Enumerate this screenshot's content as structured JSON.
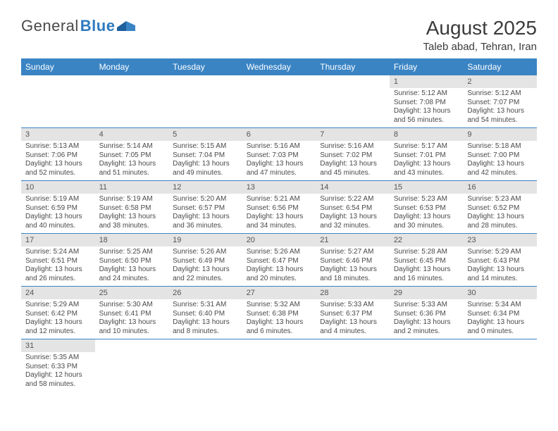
{
  "brand": {
    "part1": "General",
    "part2": "Blue"
  },
  "header": {
    "month_title": "August 2025",
    "location": "Taleb abad, Tehran, Iran"
  },
  "colors": {
    "header_bg": "#3a84c4",
    "row_sep": "#3a84c4",
    "daynum_bg": "#e4e4e4"
  },
  "day_labels": [
    "Sunday",
    "Monday",
    "Tuesday",
    "Wednesday",
    "Thursday",
    "Friday",
    "Saturday"
  ],
  "weeks": [
    [
      null,
      null,
      null,
      null,
      null,
      {
        "n": "1",
        "sunrise": "Sunrise: 5:12 AM",
        "sunset": "Sunset: 7:08 PM",
        "daylight": "Daylight: 13 hours and 56 minutes."
      },
      {
        "n": "2",
        "sunrise": "Sunrise: 5:12 AM",
        "sunset": "Sunset: 7:07 PM",
        "daylight": "Daylight: 13 hours and 54 minutes."
      }
    ],
    [
      {
        "n": "3",
        "sunrise": "Sunrise: 5:13 AM",
        "sunset": "Sunset: 7:06 PM",
        "daylight": "Daylight: 13 hours and 52 minutes."
      },
      {
        "n": "4",
        "sunrise": "Sunrise: 5:14 AM",
        "sunset": "Sunset: 7:05 PM",
        "daylight": "Daylight: 13 hours and 51 minutes."
      },
      {
        "n": "5",
        "sunrise": "Sunrise: 5:15 AM",
        "sunset": "Sunset: 7:04 PM",
        "daylight": "Daylight: 13 hours and 49 minutes."
      },
      {
        "n": "6",
        "sunrise": "Sunrise: 5:16 AM",
        "sunset": "Sunset: 7:03 PM",
        "daylight": "Daylight: 13 hours and 47 minutes."
      },
      {
        "n": "7",
        "sunrise": "Sunrise: 5:16 AM",
        "sunset": "Sunset: 7:02 PM",
        "daylight": "Daylight: 13 hours and 45 minutes."
      },
      {
        "n": "8",
        "sunrise": "Sunrise: 5:17 AM",
        "sunset": "Sunset: 7:01 PM",
        "daylight": "Daylight: 13 hours and 43 minutes."
      },
      {
        "n": "9",
        "sunrise": "Sunrise: 5:18 AM",
        "sunset": "Sunset: 7:00 PM",
        "daylight": "Daylight: 13 hours and 42 minutes."
      }
    ],
    [
      {
        "n": "10",
        "sunrise": "Sunrise: 5:19 AM",
        "sunset": "Sunset: 6:59 PM",
        "daylight": "Daylight: 13 hours and 40 minutes."
      },
      {
        "n": "11",
        "sunrise": "Sunrise: 5:19 AM",
        "sunset": "Sunset: 6:58 PM",
        "daylight": "Daylight: 13 hours and 38 minutes."
      },
      {
        "n": "12",
        "sunrise": "Sunrise: 5:20 AM",
        "sunset": "Sunset: 6:57 PM",
        "daylight": "Daylight: 13 hours and 36 minutes."
      },
      {
        "n": "13",
        "sunrise": "Sunrise: 5:21 AM",
        "sunset": "Sunset: 6:56 PM",
        "daylight": "Daylight: 13 hours and 34 minutes."
      },
      {
        "n": "14",
        "sunrise": "Sunrise: 5:22 AM",
        "sunset": "Sunset: 6:54 PM",
        "daylight": "Daylight: 13 hours and 32 minutes."
      },
      {
        "n": "15",
        "sunrise": "Sunrise: 5:23 AM",
        "sunset": "Sunset: 6:53 PM",
        "daylight": "Daylight: 13 hours and 30 minutes."
      },
      {
        "n": "16",
        "sunrise": "Sunrise: 5:23 AM",
        "sunset": "Sunset: 6:52 PM",
        "daylight": "Daylight: 13 hours and 28 minutes."
      }
    ],
    [
      {
        "n": "17",
        "sunrise": "Sunrise: 5:24 AM",
        "sunset": "Sunset: 6:51 PM",
        "daylight": "Daylight: 13 hours and 26 minutes."
      },
      {
        "n": "18",
        "sunrise": "Sunrise: 5:25 AM",
        "sunset": "Sunset: 6:50 PM",
        "daylight": "Daylight: 13 hours and 24 minutes."
      },
      {
        "n": "19",
        "sunrise": "Sunrise: 5:26 AM",
        "sunset": "Sunset: 6:49 PM",
        "daylight": "Daylight: 13 hours and 22 minutes."
      },
      {
        "n": "20",
        "sunrise": "Sunrise: 5:26 AM",
        "sunset": "Sunset: 6:47 PM",
        "daylight": "Daylight: 13 hours and 20 minutes."
      },
      {
        "n": "21",
        "sunrise": "Sunrise: 5:27 AM",
        "sunset": "Sunset: 6:46 PM",
        "daylight": "Daylight: 13 hours and 18 minutes."
      },
      {
        "n": "22",
        "sunrise": "Sunrise: 5:28 AM",
        "sunset": "Sunset: 6:45 PM",
        "daylight": "Daylight: 13 hours and 16 minutes."
      },
      {
        "n": "23",
        "sunrise": "Sunrise: 5:29 AM",
        "sunset": "Sunset: 6:43 PM",
        "daylight": "Daylight: 13 hours and 14 minutes."
      }
    ],
    [
      {
        "n": "24",
        "sunrise": "Sunrise: 5:29 AM",
        "sunset": "Sunset: 6:42 PM",
        "daylight": "Daylight: 13 hours and 12 minutes."
      },
      {
        "n": "25",
        "sunrise": "Sunrise: 5:30 AM",
        "sunset": "Sunset: 6:41 PM",
        "daylight": "Daylight: 13 hours and 10 minutes."
      },
      {
        "n": "26",
        "sunrise": "Sunrise: 5:31 AM",
        "sunset": "Sunset: 6:40 PM",
        "daylight": "Daylight: 13 hours and 8 minutes."
      },
      {
        "n": "27",
        "sunrise": "Sunrise: 5:32 AM",
        "sunset": "Sunset: 6:38 PM",
        "daylight": "Daylight: 13 hours and 6 minutes."
      },
      {
        "n": "28",
        "sunrise": "Sunrise: 5:33 AM",
        "sunset": "Sunset: 6:37 PM",
        "daylight": "Daylight: 13 hours and 4 minutes."
      },
      {
        "n": "29",
        "sunrise": "Sunrise: 5:33 AM",
        "sunset": "Sunset: 6:36 PM",
        "daylight": "Daylight: 13 hours and 2 minutes."
      },
      {
        "n": "30",
        "sunrise": "Sunrise: 5:34 AM",
        "sunset": "Sunset: 6:34 PM",
        "daylight": "Daylight: 13 hours and 0 minutes."
      }
    ],
    [
      {
        "n": "31",
        "sunrise": "Sunrise: 5:35 AM",
        "sunset": "Sunset: 6:33 PM",
        "daylight": "Daylight: 12 hours and 58 minutes."
      },
      null,
      null,
      null,
      null,
      null,
      null
    ]
  ]
}
